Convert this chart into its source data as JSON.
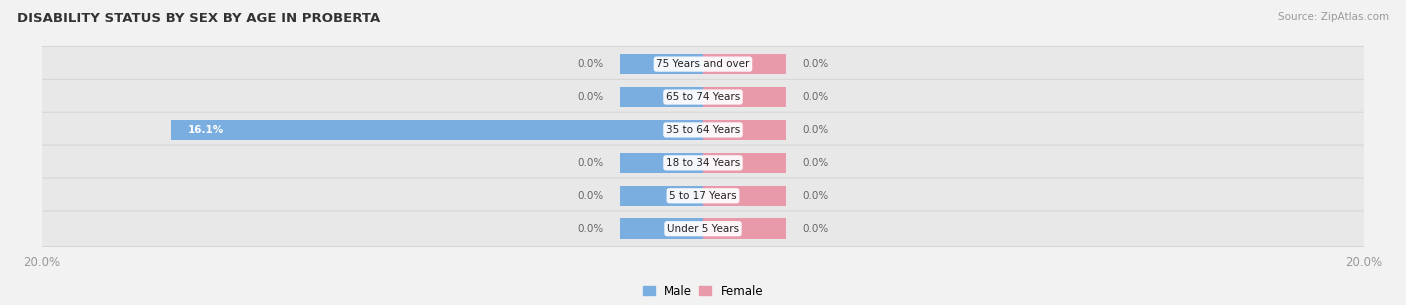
{
  "title": "DISABILITY STATUS BY SEX BY AGE IN PROBERTA",
  "source": "Source: ZipAtlas.com",
  "categories": [
    "Under 5 Years",
    "5 to 17 Years",
    "18 to 34 Years",
    "35 to 64 Years",
    "65 to 74 Years",
    "75 Years and over"
  ],
  "male_values": [
    0.0,
    0.0,
    0.0,
    16.1,
    0.0,
    0.0
  ],
  "female_values": [
    0.0,
    0.0,
    0.0,
    0.0,
    0.0,
    0.0
  ],
  "xlim": 20.0,
  "male_color": "#7aade0",
  "female_color": "#e899aa",
  "row_fill_color": "#e8e8e8",
  "row_edge_color": "#d4d4d4",
  "bg_color": "#f2f2f2",
  "label_color": "#555555",
  "title_color": "#333333",
  "value_label_color": "#666666",
  "tick_label_color": "#999999",
  "bar_height": 0.62,
  "stub_size": 2.5,
  "legend_male_label": "Male",
  "legend_female_label": "Female"
}
